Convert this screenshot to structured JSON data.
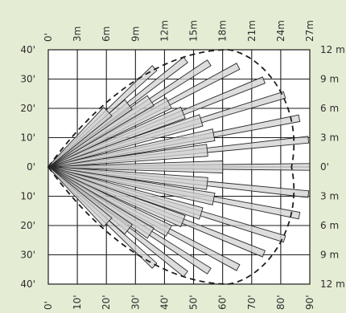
{
  "colors": {
    "background": "#e4ecd4",
    "grid_fill": "#ffffff",
    "grid_line": "#1e1e1e",
    "beam_fill": "#d2d2d2",
    "beam_stroke": "#2a2a2a",
    "text": "#2e2e2e"
  },
  "axes": {
    "top_labels": [
      "0'",
      "3m",
      "6m",
      "9m",
      "12m",
      "15m",
      "18m",
      "21m",
      "24m",
      "27m"
    ],
    "bottom_labels": [
      "0'",
      "10'",
      "20'",
      "30'",
      "40'",
      "50'",
      "60'",
      "70'",
      "80'",
      "90'"
    ],
    "left_labels": [
      "40'",
      "30'",
      "20'",
      "10'",
      "0'",
      "10'",
      "20'",
      "30'",
      "40'"
    ],
    "right_labels": [
      "12 m",
      "9 m",
      "6 m",
      "3 m",
      "0'",
      "3 m",
      "6 m",
      "9 m",
      "12 m"
    ]
  },
  "chart_data": {
    "type": "coverage-pattern",
    "x_range_ft": [
      0,
      90
    ],
    "y_range_ft": [
      -40,
      40
    ],
    "grid": true,
    "coverage_envelope": {
      "max_range_ft": 90,
      "max_width_ft": 40
    },
    "beams": [
      {
        "angle_deg": 0,
        "segments": [
          [
            0,
            90
          ],
          [
            0,
            60
          ]
        ]
      },
      {
        "angle_deg": 6,
        "segments": [
          [
            0,
            90
          ],
          [
            0,
            55
          ]
        ]
      },
      {
        "angle_deg": -6,
        "segments": [
          [
            0,
            90
          ],
          [
            0,
            55
          ]
        ]
      },
      {
        "angle_deg": 11,
        "segments": [
          [
            0,
            88
          ],
          [
            0,
            58
          ]
        ]
      },
      {
        "angle_deg": -11,
        "segments": [
          [
            0,
            88
          ],
          [
            0,
            58
          ]
        ]
      },
      {
        "angle_deg": 17,
        "segments": [
          [
            0,
            85
          ],
          [
            0,
            55
          ]
        ]
      },
      {
        "angle_deg": -17,
        "segments": [
          [
            0,
            85
          ],
          [
            0,
            55
          ]
        ]
      },
      {
        "angle_deg": 22,
        "segments": [
          [
            0,
            80
          ],
          [
            0,
            50
          ]
        ]
      },
      {
        "angle_deg": -22,
        "segments": [
          [
            0,
            80
          ],
          [
            0,
            50
          ]
        ]
      },
      {
        "angle_deg": 28,
        "segments": [
          [
            0,
            74
          ],
          [
            0,
            47
          ]
        ]
      },
      {
        "angle_deg": -28,
        "segments": [
          [
            0,
            74
          ],
          [
            0,
            47
          ]
        ]
      },
      {
        "angle_deg": 33,
        "segments": [
          [
            0,
            66
          ],
          [
            0,
            42
          ]
        ]
      },
      {
        "angle_deg": -33,
        "segments": [
          [
            0,
            66
          ],
          [
            0,
            42
          ]
        ]
      },
      {
        "angle_deg": 38,
        "segments": [
          [
            0,
            60
          ],
          [
            0,
            35
          ]
        ]
      },
      {
        "angle_deg": -38,
        "segments": [
          [
            0,
            60
          ],
          [
            0,
            35
          ]
        ]
      },
      {
        "angle_deg": 43,
        "segments": [
          [
            0,
            50
          ],
          [
            0,
            28
          ]
        ]
      },
      {
        "angle_deg": -43,
        "segments": [
          [
            0,
            50
          ],
          [
            0,
            28
          ]
        ]
      }
    ]
  }
}
